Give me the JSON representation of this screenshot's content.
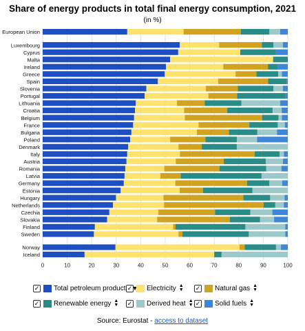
{
  "title": "Share of energy products in total final energy consumption, 2021",
  "subtitle": "(in %)",
  "source": {
    "prefix": "Source: Eurostat - ",
    "link": "access to dataset"
  },
  "colors": {
    "Total petroleum products": "#1e4fc2",
    "Electricity": "#fde36e",
    "Natural gas": "#d1a320",
    "Renewable energy": "#2a8c86",
    "Derived heat": "#9ec9ca",
    "Solid fuels": "#3e86d8"
  },
  "legend": [
    {
      "label": "Total petroleum products",
      "checked": "✓",
      "sort": "down"
    },
    {
      "label": "Electricity",
      "checked": "✓",
      "sort": "both"
    },
    {
      "label": "Natural gas",
      "checked": "✓",
      "sort": "both"
    },
    {
      "label": "Renewable energy",
      "checked": "✓",
      "sort": "both"
    },
    {
      "label": "Derived heat",
      "checked": "✓",
      "sort": "both"
    },
    {
      "label": "Solid fuels",
      "checked": "✓",
      "sort": "both"
    }
  ],
  "chart_data": {
    "type": "bar",
    "orientation": "horizontal",
    "stacked": true,
    "title": "Share of energy products in total final energy consumption, 2021",
    "subtitle": "(in %)",
    "xlim": [
      0,
      100
    ],
    "xticks": [
      0,
      10,
      20,
      30,
      40,
      50,
      60,
      70,
      80,
      90,
      100
    ],
    "grid": true,
    "legend_position": "bottom",
    "series_names": [
      "Total petroleum products",
      "Electricity",
      "Natural gas",
      "Renewable energy",
      "Derived heat",
      "Solid fuels"
    ],
    "groups": [
      {
        "rows": [
          {
            "category": "European Union",
            "values": [
              34.5,
              23.0,
              23.4,
              11.6,
              4.4,
              3.1
            ]
          }
        ]
      },
      {
        "rows": [
          {
            "category": "Luxembourg",
            "values": [
              55.9,
              16.1,
              17.4,
              4.7,
              3.9,
              2.0
            ]
          },
          {
            "category": "Cyprus",
            "values": [
              55.3,
              25.3,
              0.0,
              14.5,
              0.0,
              4.9
            ]
          },
          {
            "category": "Malta",
            "values": [
              52.0,
              42.0,
              0.0,
              6.0,
              0.0,
              0.0
            ]
          },
          {
            "category": "Ireland",
            "values": [
              50.3,
              23.4,
              18.2,
              4.1,
              0.0,
              4.0
            ]
          },
          {
            "category": "Greece",
            "values": [
              49.8,
              28.9,
              8.5,
              8.9,
              1.5,
              2.4
            ]
          },
          {
            "category": "Spain",
            "values": [
              47.0,
              24.6,
              20.4,
              7.5,
              0.0,
              0.5
            ]
          },
          {
            "category": "Slovenia",
            "values": [
              42.3,
              24.3,
              13.0,
              14.5,
              3.9,
              2.0
            ]
          },
          {
            "category": "Portugal",
            "values": [
              41.6,
              26.0,
              11.7,
              19.8,
              0.0,
              0.9
            ]
          },
          {
            "category": "Lithuania",
            "values": [
              38.0,
              16.8,
              11.3,
              15.0,
              15.8,
              3.1
            ]
          },
          {
            "category": "Croatia",
            "values": [
              37.7,
              20.0,
              17.6,
              18.5,
              3.7,
              2.5
            ]
          },
          {
            "category": "Belgium",
            "values": [
              37.3,
              20.7,
              31.5,
              6.7,
              1.4,
              2.4
            ]
          },
          {
            "category": "France",
            "values": [
              36.9,
              26.7,
              20.7,
              11.6,
              2.9,
              1.2
            ]
          },
          {
            "category": "Bulgaria",
            "values": [
              36.2,
              26.7,
              13.1,
              11.6,
              8.0,
              4.4
            ]
          },
          {
            "category": "Poland",
            "values": [
              35.7,
              16.3,
              14.4,
              12.8,
              8.3,
              12.5
            ]
          },
          {
            "category": "Denmark",
            "values": [
              34.9,
              20.5,
              9.5,
              14.3,
              20.8,
              0.0
            ]
          },
          {
            "category": "Italy",
            "values": [
              34.5,
              21.5,
              30.5,
              10.2,
              1.7,
              1.6
            ]
          },
          {
            "category": "Austria",
            "values": [
              34.2,
              20.1,
              19.6,
              17.1,
              7.0,
              2.0
            ]
          },
          {
            "category": "Romania",
            "values": [
              33.7,
              15.9,
              22.5,
              19.1,
              6.2,
              2.6
            ]
          },
          {
            "category": "Latvia",
            "values": [
              33.4,
              14.6,
              8.3,
              33.0,
              11.0,
              0.0
            ]
          },
          {
            "category": "Germany",
            "values": [
              33.1,
              21.0,
              29.3,
              9.1,
              5.2,
              2.3
            ]
          },
          {
            "category": "Estonia",
            "values": [
              31.8,
              24.1,
              9.5,
              20.2,
              14.4,
              0.0
            ]
          },
          {
            "category": "Hungary",
            "values": [
              29.9,
              19.4,
              32.6,
              10.9,
              5.9,
              1.3
            ]
          },
          {
            "category": "Netherlands",
            "values": [
              28.7,
              20.8,
              40.6,
              4.8,
              3.5,
              1.6
            ]
          },
          {
            "category": "Czechia",
            "values": [
              27.2,
              20.0,
              23.1,
              14.4,
              9.0,
              6.3
            ]
          },
          {
            "category": "Slovakia",
            "values": [
              26.3,
              20.4,
              29.7,
              12.3,
              5.7,
              5.6
            ]
          },
          {
            "category": "Finland",
            "values": [
              21.3,
              31.9,
              1.0,
              28.5,
              16.3,
              1.0
            ]
          },
          {
            "category": "Sweden",
            "values": [
              20.9,
              34.5,
              1.6,
              27.1,
              14.9,
              1.0
            ]
          }
        ]
      },
      {
        "rows": [
          {
            "category": "Norway",
            "values": [
              29.7,
              50.6,
              2.1,
              12.8,
              2.0,
              2.8
            ]
          },
          {
            "category": "Iceland",
            "values": [
              17.1,
              52.9,
              0.0,
              3.0,
              27.0,
              0.0
            ]
          }
        ]
      }
    ]
  }
}
